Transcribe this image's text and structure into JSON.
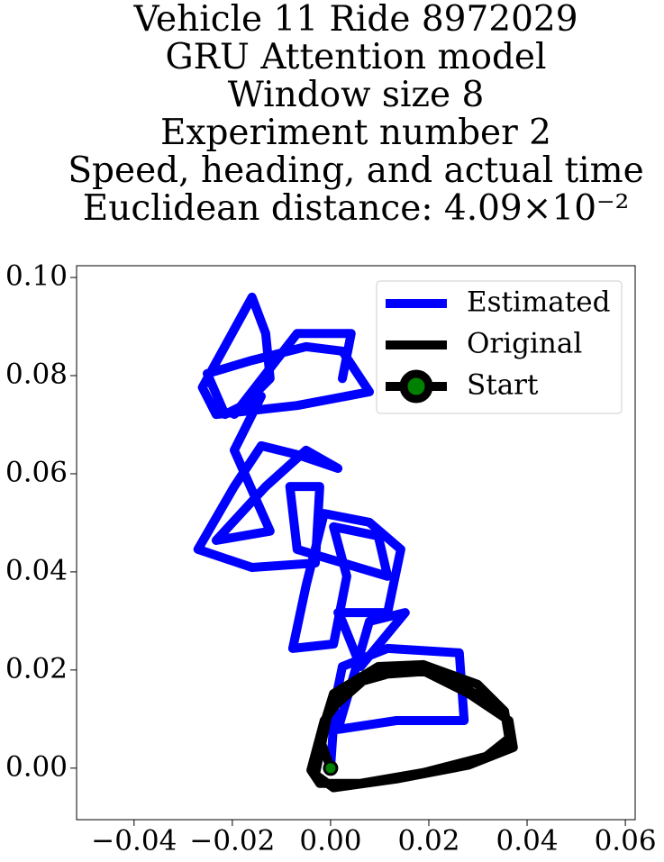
{
  "chart_data": {
    "type": "line",
    "title": [
      "Vehicle 11 Ride 8972029",
      "GRU Attention model",
      "Window size 8",
      "Experiment number 2",
      "Speed, heading, and actual time",
      "Euclidean distance: 4.09×10⁻²"
    ],
    "xlim": [
      -0.0517,
      0.062
    ],
    "ylim": [
      -0.0105,
      0.1024
    ],
    "xticks": [
      {
        "value": -0.04,
        "label": "−0.04"
      },
      {
        "value": -0.02,
        "label": "−0.02"
      },
      {
        "value": 0,
        "label": "0.00"
      },
      0.02,
      0.04,
      0.06
    ],
    "yticks": [
      {
        "value": 0,
        "label": "0.00"
      },
      0.02,
      0.04,
      0.06,
      0.08,
      {
        "value": 0.1,
        "label": "0.10"
      }
    ],
    "legend": "upper right",
    "series": [
      {
        "name": "Estimated",
        "color": "#0000ff",
        "x": [
          0,
          0.0009,
          0.0024,
          0.0116,
          0.0262,
          0.0272,
          0.0134,
          0.0015,
          0.0042,
          0.0079,
          0.0152,
          0.0061,
          0.0024,
          0.0015,
          0.0116,
          0.0143,
          0.0079,
          -0.0013,
          -0.005,
          -0.0077,
          0.0006,
          0.0033,
          0.0006,
          0.0097,
          0.0116,
          -0.0068,
          -0.0083,
          -0.0022,
          -0.0031,
          -0.016,
          -0.027,
          -0.0196,
          -0.0141,
          -0.0068,
          0.0015,
          -0.005,
          -0.0132,
          -0.0233,
          -0.0123,
          -0.0196,
          -0.0141,
          -0.0215,
          -0.0251,
          -0.016,
          -0.005,
          0.0024,
          0.0079,
          -0.0068,
          -0.0233,
          -0.0261,
          -0.016,
          -0.0132,
          -0.0123,
          -0.0196,
          -0.0068,
          0.0042,
          0.0024
        ],
        "y": [
          0,
          0.0134,
          0.0207,
          0.0244,
          0.0235,
          0.0097,
          0.0097,
          0.0079,
          0.0171,
          0.0299,
          0.0317,
          0.0207,
          0.0299,
          0.0317,
          0.0317,
          0.0446,
          0.0501,
          0.0519,
          0.0372,
          0.0244,
          0.0253,
          0.0391,
          0.0492,
          0.0473,
          0.0391,
          0.0446,
          0.0574,
          0.0574,
          0.0418,
          0.0409,
          0.0446,
          0.0574,
          0.0657,
          0.0639,
          0.0611,
          0.0648,
          0.0574,
          0.0464,
          0.0483,
          0.0648,
          0.0758,
          0.0721,
          0.0804,
          0.0831,
          0.0859,
          0.085,
          0.0767,
          0.0739,
          0.0721,
          0.0776,
          0.096,
          0.0886,
          0.0794,
          0.0721,
          0.0886,
          0.0886,
          0.0794
        ]
      },
      {
        "name": "Original",
        "color": "#000000",
        "x": [
          0,
          -0.0022,
          0.0006,
          0.0097,
          0.0189,
          0.0299,
          0.0354,
          0.0363,
          0.0317,
          0.0189,
          0.0061,
          -0.0022,
          -0.004,
          -0.0013,
          0.0042,
          0.0171,
          0.0281,
          0.0363,
          0.0372,
          0.0281,
          0.0134,
          0.0006,
          -0.0031,
          -0.0004,
          0.0079,
          0.0207,
          0.0327
        ],
        "y": [
          0,
          0.0061,
          0.0152,
          0.0207,
          0.0211,
          0.0171,
          0.0116,
          0.0061,
          0.0024,
          -0.0009,
          -0.0031,
          -0.0031,
          -0.0004,
          0.0097,
          0.0171,
          0.0207,
          0.0152,
          0.0097,
          0.0042,
          0.0006,
          -0.0022,
          -0.004,
          -0.0013,
          0.0116,
          0.0189,
          0.0198,
          0.0134
        ]
      },
      {
        "name": "Start",
        "color": "#000000",
        "marker_color": "#008000",
        "x": [
          0
        ],
        "y": [
          0
        ]
      }
    ]
  }
}
